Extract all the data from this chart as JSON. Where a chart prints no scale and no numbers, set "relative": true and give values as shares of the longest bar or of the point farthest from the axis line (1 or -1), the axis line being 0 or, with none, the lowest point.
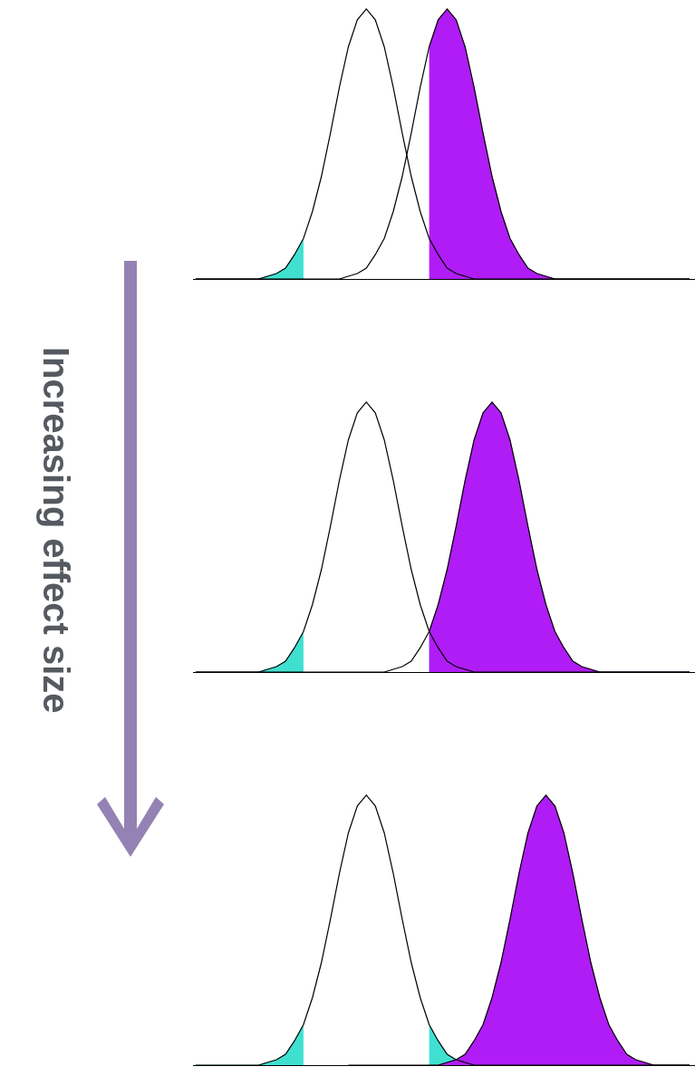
{
  "chart_data": [
    {
      "type": "line",
      "relative": true,
      "categories": [
        null,
        null,
        null,
        null,
        null,
        null,
        null,
        null,
        null,
        null,
        null,
        null,
        null,
        null,
        null,
        null,
        null,
        null,
        null,
        null,
        null,
        null,
        null,
        null,
        null,
        null,
        null,
        null,
        null,
        null,
        null,
        null,
        null,
        null,
        null,
        null,
        null,
        null,
        null,
        null,
        null,
        null,
        null,
        null,
        null,
        null,
        null,
        null,
        null,
        null,
        null,
        null,
        null,
        null,
        null,
        null
      ],
      "annotations": [
        "Increasing effect size"
      ],
      "series": [
        {
          "type": "area",
          "color": "#40e0d0",
          "values": [
            0,
            0,
            0,
            0,
            0,
            0,
            0,
            0,
            0.01,
            0.02,
            0.04,
            0.09,
            0.15,
            null,
            null,
            null,
            null,
            null,
            null,
            null,
            null,
            null,
            null,
            null,
            null,
            null,
            null,
            null,
            null,
            null,
            null,
            null,
            null,
            null,
            null,
            null,
            null,
            null,
            null,
            null,
            null,
            null,
            null,
            null,
            null,
            null,
            null,
            null,
            null,
            null,
            null,
            null,
            null,
            null,
            null,
            null
          ]
        },
        {
          "type": "area",
          "color": "#b01cf5",
          "values": [
            null,
            null,
            null,
            null,
            null,
            null,
            null,
            null,
            null,
            null,
            null,
            null,
            null,
            null,
            null,
            null,
            null,
            null,
            null,
            null,
            null,
            null,
            null,
            null,
            null,
            null,
            0.86,
            0.96,
            1,
            0.96,
            0.86,
            0.71,
            0.54,
            0.38,
            0.25,
            0.15,
            0.09,
            0.04,
            0.02,
            0.01,
            0,
            0,
            0,
            0,
            0,
            0,
            0,
            0,
            0,
            0,
            0,
            0,
            0,
            0,
            0,
            0
          ]
        },
        {
          "color": "#000000",
          "values": [
            0,
            0,
            0,
            0,
            0,
            0,
            0,
            0,
            0.01,
            0.02,
            0.04,
            0.09,
            0.15,
            0.25,
            0.38,
            0.54,
            0.71,
            0.86,
            0.96,
            1,
            0.96,
            0.86,
            0.71,
            0.54,
            0.38,
            0.25,
            0.15,
            0.09,
            0.04,
            0.02,
            0.01,
            0,
            0,
            0,
            0,
            0,
            0,
            0,
            0,
            0,
            0,
            0,
            0,
            0,
            0,
            0,
            0,
            0,
            0,
            0,
            0,
            0,
            0,
            0,
            0,
            0
          ]
        },
        {
          "color": "#000000",
          "values": [
            0,
            0,
            0,
            0,
            0,
            0,
            0,
            0,
            0,
            0,
            0,
            0,
            0,
            0,
            0,
            0,
            0,
            0.01,
            0.02,
            0.04,
            0.09,
            0.15,
            0.25,
            0.38,
            0.54,
            0.71,
            0.86,
            0.96,
            1,
            0.96,
            0.86,
            0.71,
            0.54,
            0.38,
            0.25,
            0.15,
            0.09,
            0.04,
            0.02,
            0.01,
            0,
            0,
            0,
            0,
            0,
            0,
            0,
            0,
            0,
            0,
            0,
            0,
            0,
            0,
            0,
            0
          ]
        }
      ]
    },
    {
      "type": "line",
      "relative": true,
      "categories": [
        null,
        null,
        null,
        null,
        null,
        null,
        null,
        null,
        null,
        null,
        null,
        null,
        null,
        null,
        null,
        null,
        null,
        null,
        null,
        null,
        null,
        null,
        null,
        null,
        null,
        null,
        null,
        null,
        null,
        null,
        null,
        null,
        null,
        null,
        null,
        null,
        null,
        null,
        null,
        null,
        null,
        null,
        null,
        null,
        null,
        null,
        null,
        null,
        null,
        null,
        null,
        null,
        null,
        null,
        null,
        null
      ],
      "series": [
        {
          "type": "area",
          "color": "#40e0d0",
          "values": [
            0,
            0,
            0,
            0,
            0,
            0,
            0,
            0,
            0.01,
            0.02,
            0.04,
            0.09,
            0.15,
            null,
            null,
            null,
            null,
            null,
            null,
            null,
            null,
            null,
            null,
            null,
            null,
            null,
            null,
            null,
            null,
            null,
            null,
            null,
            null,
            null,
            null,
            null,
            null,
            null,
            null,
            null,
            null,
            null,
            null,
            null,
            null,
            null,
            null,
            null,
            null,
            null,
            null,
            null,
            null,
            null,
            null,
            null
          ]
        },
        {
          "type": "area",
          "color": "#40e0d0",
          "values": [
            null,
            null,
            null,
            null,
            null,
            null,
            null,
            null,
            null,
            null,
            null,
            null,
            null,
            null,
            null,
            null,
            null,
            null,
            null,
            null,
            null,
            null,
            null,
            null,
            null,
            null,
            0.15,
            0.09,
            0.04,
            0.02,
            0.01,
            0,
            0,
            0,
            0,
            0,
            0,
            0,
            0,
            0,
            0,
            0,
            0,
            0,
            0,
            0,
            0,
            0,
            0,
            0,
            0,
            0,
            0,
            0,
            0,
            0
          ]
        },
        {
          "type": "area",
          "color": "#b01cf5",
          "values": [
            null,
            null,
            null,
            null,
            null,
            null,
            null,
            null,
            null,
            null,
            null,
            null,
            null,
            null,
            null,
            null,
            null,
            null,
            null,
            null,
            null,
            null,
            null,
            null,
            null,
            null,
            0.15,
            0.25,
            0.38,
            0.54,
            0.71,
            0.86,
            0.96,
            1,
            0.96,
            0.86,
            0.71,
            0.54,
            0.38,
            0.25,
            0.15,
            0.09,
            0.04,
            0.02,
            0.01,
            0,
            0,
            0,
            0,
            0,
            0,
            0,
            0,
            0,
            0,
            0
          ]
        },
        {
          "color": "#000000",
          "values": [
            0,
            0,
            0,
            0,
            0,
            0,
            0,
            0,
            0.01,
            0.02,
            0.04,
            0.09,
            0.15,
            0.25,
            0.38,
            0.54,
            0.71,
            0.86,
            0.96,
            1,
            0.96,
            0.86,
            0.71,
            0.54,
            0.38,
            0.25,
            0.15,
            0.09,
            0.04,
            0.02,
            0.01,
            0,
            0,
            0,
            0,
            0,
            0,
            0,
            0,
            0,
            0,
            0,
            0,
            0,
            0,
            0,
            0,
            0,
            0,
            0,
            0,
            0,
            0,
            0,
            0,
            0
          ]
        },
        {
          "color": "#000000",
          "values": [
            0,
            0,
            0,
            0,
            0,
            0,
            0,
            0,
            0,
            0,
            0,
            0,
            0,
            0,
            0,
            0,
            0,
            0,
            0,
            0,
            0,
            0,
            0.01,
            0.02,
            0.04,
            0.09,
            0.15,
            0.25,
            0.38,
            0.54,
            0.71,
            0.86,
            0.96,
            1,
            0.96,
            0.86,
            0.71,
            0.54,
            0.38,
            0.25,
            0.15,
            0.09,
            0.04,
            0.02,
            0.01,
            0,
            0,
            0,
            0,
            0,
            0,
            0,
            0,
            0,
            0,
            0
          ]
        }
      ]
    },
    {
      "type": "line",
      "relative": true,
      "categories": [
        null,
        null,
        null,
        null,
        null,
        null,
        null,
        null,
        null,
        null,
        null,
        null,
        null,
        null,
        null,
        null,
        null,
        null,
        null,
        null,
        null,
        null,
        null,
        null,
        null,
        null,
        null,
        null,
        null,
        null,
        null,
        null,
        null,
        null,
        null,
        null,
        null,
        null,
        null,
        null,
        null,
        null,
        null,
        null,
        null,
        null,
        null,
        null,
        null,
        null,
        null,
        null,
        null,
        null,
        null,
        null
      ],
      "series": [
        {
          "type": "area",
          "color": "#40e0d0",
          "values": [
            0,
            0,
            0,
            0,
            0,
            0,
            0,
            0,
            0.01,
            0.02,
            0.04,
            0.09,
            0.15,
            null,
            null,
            null,
            null,
            null,
            null,
            null,
            null,
            null,
            null,
            null,
            null,
            null,
            null,
            null,
            null,
            null,
            null,
            null,
            null,
            null,
            null,
            null,
            null,
            null,
            null,
            null,
            null,
            null,
            null,
            null,
            null,
            null,
            null,
            null,
            null,
            null,
            null,
            null,
            null,
            null,
            null,
            null
          ]
        },
        {
          "type": "area",
          "color": "#40e0d0",
          "values": [
            null,
            null,
            null,
            null,
            null,
            null,
            null,
            null,
            null,
            null,
            null,
            null,
            null,
            null,
            null,
            null,
            null,
            null,
            null,
            null,
            null,
            null,
            null,
            null,
            null,
            null,
            0.15,
            0.09,
            0.04,
            0.02,
            0.01,
            0,
            0,
            0,
            0,
            0,
            0,
            0,
            0,
            0,
            0,
            0,
            0,
            0,
            0,
            0,
            0,
            0,
            0,
            0,
            0,
            0,
            0,
            0,
            0,
            0
          ]
        },
        {
          "type": "area",
          "color": "#b01cf5",
          "values": [
            null,
            null,
            null,
            null,
            null,
            null,
            null,
            null,
            null,
            null,
            null,
            null,
            null,
            null,
            null,
            null,
            null,
            null,
            null,
            null,
            null,
            null,
            null,
            null,
            null,
            null,
            0,
            0,
            0.01,
            0.02,
            0.04,
            0.09,
            0.15,
            0.25,
            0.38,
            0.54,
            0.71,
            0.86,
            0.96,
            1,
            0.96,
            0.86,
            0.71,
            0.54,
            0.38,
            0.25,
            0.15,
            0.09,
            0.04,
            0.02,
            0.01,
            0,
            0,
            0,
            0,
            0
          ]
        },
        {
          "color": "#000000",
          "values": [
            0,
            0,
            0,
            0,
            0,
            0,
            0,
            0,
            0.01,
            0.02,
            0.04,
            0.09,
            0.15,
            0.25,
            0.38,
            0.54,
            0.71,
            0.86,
            0.96,
            1,
            0.96,
            0.86,
            0.71,
            0.54,
            0.38,
            0.25,
            0.15,
            0.09,
            0.04,
            0.02,
            0.01,
            0,
            0,
            0,
            0,
            0,
            0,
            0,
            0,
            0,
            0,
            0,
            0,
            0,
            0,
            0,
            0,
            0,
            0,
            0,
            0,
            0,
            0,
            0,
            0,
            0
          ]
        },
        {
          "color": "#000000",
          "values": [
            null,
            null,
            null,
            null,
            null,
            null,
            null,
            null,
            null,
            null,
            null,
            null,
            null,
            null,
            null,
            null,
            null,
            0,
            0,
            0,
            0,
            0,
            0,
            0,
            0,
            0,
            0,
            0,
            0.01,
            0.02,
            0.04,
            0.09,
            0.15,
            0.25,
            0.38,
            0.54,
            0.71,
            0.86,
            0.96,
            1,
            0.96,
            0.86,
            0.71,
            0.54,
            0.38,
            0.25,
            0.15,
            0.09,
            0.04,
            0.02,
            0.01,
            0,
            0,
            0,
            0,
            0
          ]
        }
      ]
    }
  ]
}
